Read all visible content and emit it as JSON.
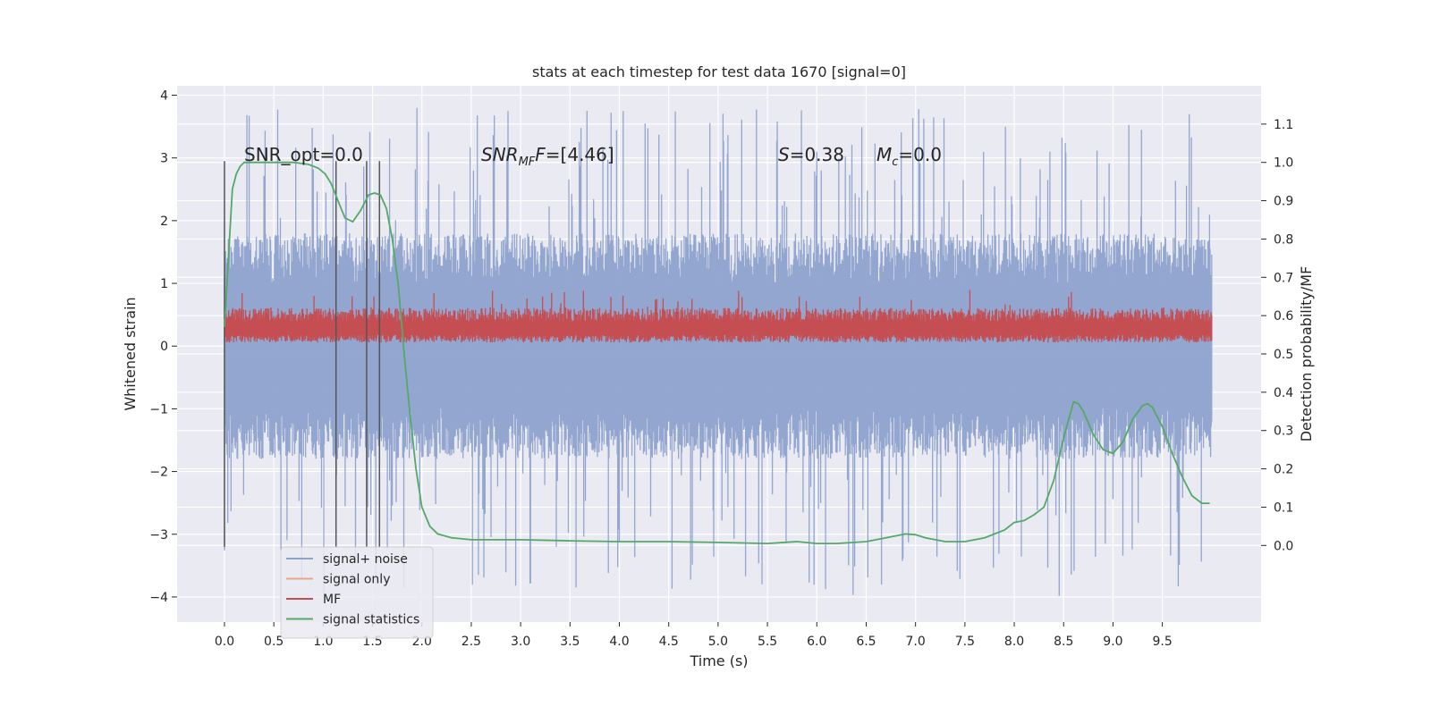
{
  "chart_data": {
    "type": "line",
    "title": "stats at each timestep for test data 1670 [signal=0]",
    "xlabel": "Time (s)",
    "ylabel_left": "Whitened strain",
    "ylabel_right": "Detection probability/MF",
    "xlim": [
      -0.48,
      10.5
    ],
    "ylim_left": [
      -4.4,
      4.15
    ],
    "ylim_right": [
      -0.2,
      1.2
    ],
    "x_ticks": [
      0.0,
      0.5,
      1.0,
      1.5,
      2.0,
      2.5,
      3.0,
      3.5,
      4.0,
      4.5,
      5.0,
      5.5,
      6.0,
      6.5,
      7.0,
      7.5,
      8.0,
      8.5,
      9.0,
      9.5
    ],
    "x_tick_labels": [
      "0.0",
      "0.5",
      "1.0",
      "1.5",
      "2.0",
      "2.5",
      "3.0",
      "3.5",
      "4.0",
      "4.5",
      "5.0",
      "5.5",
      "6.0",
      "6.5",
      "7.0",
      "7.5",
      "8.0",
      "8.5",
      "9.0",
      "9.5"
    ],
    "y_left_ticks": [
      -4,
      -3,
      -2,
      -1,
      0,
      1,
      2,
      3,
      4
    ],
    "y_left_tick_labels": [
      "−4",
      "−3",
      "−2",
      "−1",
      "0",
      "1",
      "2",
      "3",
      "4"
    ],
    "y_right_ticks": [
      0.0,
      0.1,
      0.2,
      0.3,
      0.4,
      0.5,
      0.6,
      0.7,
      0.8,
      0.9,
      1.0,
      1.1
    ],
    "y_right_tick_labels": [
      "0.0",
      "0.1",
      "0.2",
      "0.3",
      "0.4",
      "0.5",
      "0.6",
      "0.7",
      "0.8",
      "0.9",
      "1.0",
      "1.1"
    ],
    "grid": true,
    "legend_placement": "lower-left",
    "annotations": [
      {
        "id": "snr-opt",
        "text": "SNR_opt=0.0"
      },
      {
        "id": "snr-mf",
        "text": "SNR",
        "sub": "MF",
        "italic_suffix": "F",
        "rest": "=[4.46]"
      },
      {
        "id": "s-stat",
        "text": "S",
        "rest": "=0.38"
      },
      {
        "id": "mc",
        "text": "M",
        "sub": "c",
        "rest": "=0.0"
      }
    ],
    "vertical_markers": {
      "x": [
        0.0,
        1.13,
        1.44,
        1.57
      ],
      "y_range_left": [
        -3.2,
        2.95
      ]
    },
    "series": [
      {
        "name": "signal+ noise",
        "axis": "left",
        "color": "#8ea2cc",
        "style": "noise",
        "x_range": [
          0.0,
          10.0
        ],
        "typical_range": [
          -1.8,
          1.8
        ],
        "extreme_range": [
          -4.0,
          3.8
        ]
      },
      {
        "name": "signal only",
        "axis": "left",
        "color": "#e8a58a",
        "values": []
      },
      {
        "name": "MF",
        "axis": "right",
        "color": "#c44e52",
        "style": "band",
        "x_range": [
          0.0,
          10.0
        ],
        "typical_range": [
          0.53,
          0.62
        ],
        "extreme_range": [
          0.52,
          0.67
        ]
      },
      {
        "name": "signal statistics",
        "axis": "right",
        "color": "#55a868",
        "x": [
          0.0,
          0.04,
          0.08,
          0.12,
          0.16,
          0.2,
          0.3,
          0.5,
          0.7,
          0.85,
          0.95,
          1.02,
          1.08,
          1.15,
          1.22,
          1.3,
          1.38,
          1.46,
          1.52,
          1.58,
          1.64,
          1.7,
          1.76,
          1.82,
          1.88,
          1.94,
          2.0,
          2.08,
          2.16,
          2.3,
          2.5,
          3.0,
          3.5,
          4.0,
          4.5,
          5.0,
          5.5,
          5.8,
          6.0,
          6.2,
          6.5,
          6.7,
          6.9,
          7.0,
          7.1,
          7.3,
          7.5,
          7.7,
          7.9,
          8.0,
          8.1,
          8.2,
          8.3,
          8.4,
          8.5,
          8.6,
          8.65,
          8.7,
          8.8,
          8.9,
          9.0,
          9.1,
          9.2,
          9.3,
          9.35,
          9.4,
          9.5,
          9.6,
          9.7,
          9.8,
          9.9,
          9.98
        ],
        "values": [
          0.57,
          0.75,
          0.93,
          0.97,
          0.99,
          1.0,
          1.0,
          1.0,
          1.0,
          0.995,
          0.985,
          0.97,
          0.945,
          0.9,
          0.855,
          0.845,
          0.875,
          0.915,
          0.92,
          0.915,
          0.88,
          0.8,
          0.68,
          0.5,
          0.34,
          0.2,
          0.1,
          0.05,
          0.03,
          0.02,
          0.015,
          0.015,
          0.012,
          0.01,
          0.01,
          0.008,
          0.005,
          0.01,
          0.005,
          0.005,
          0.01,
          0.02,
          0.03,
          0.028,
          0.02,
          0.01,
          0.01,
          0.02,
          0.04,
          0.06,
          0.065,
          0.08,
          0.1,
          0.17,
          0.28,
          0.375,
          0.37,
          0.35,
          0.29,
          0.25,
          0.24,
          0.27,
          0.33,
          0.365,
          0.37,
          0.36,
          0.31,
          0.24,
          0.18,
          0.13,
          0.11,
          0.11
        ]
      }
    ]
  }
}
